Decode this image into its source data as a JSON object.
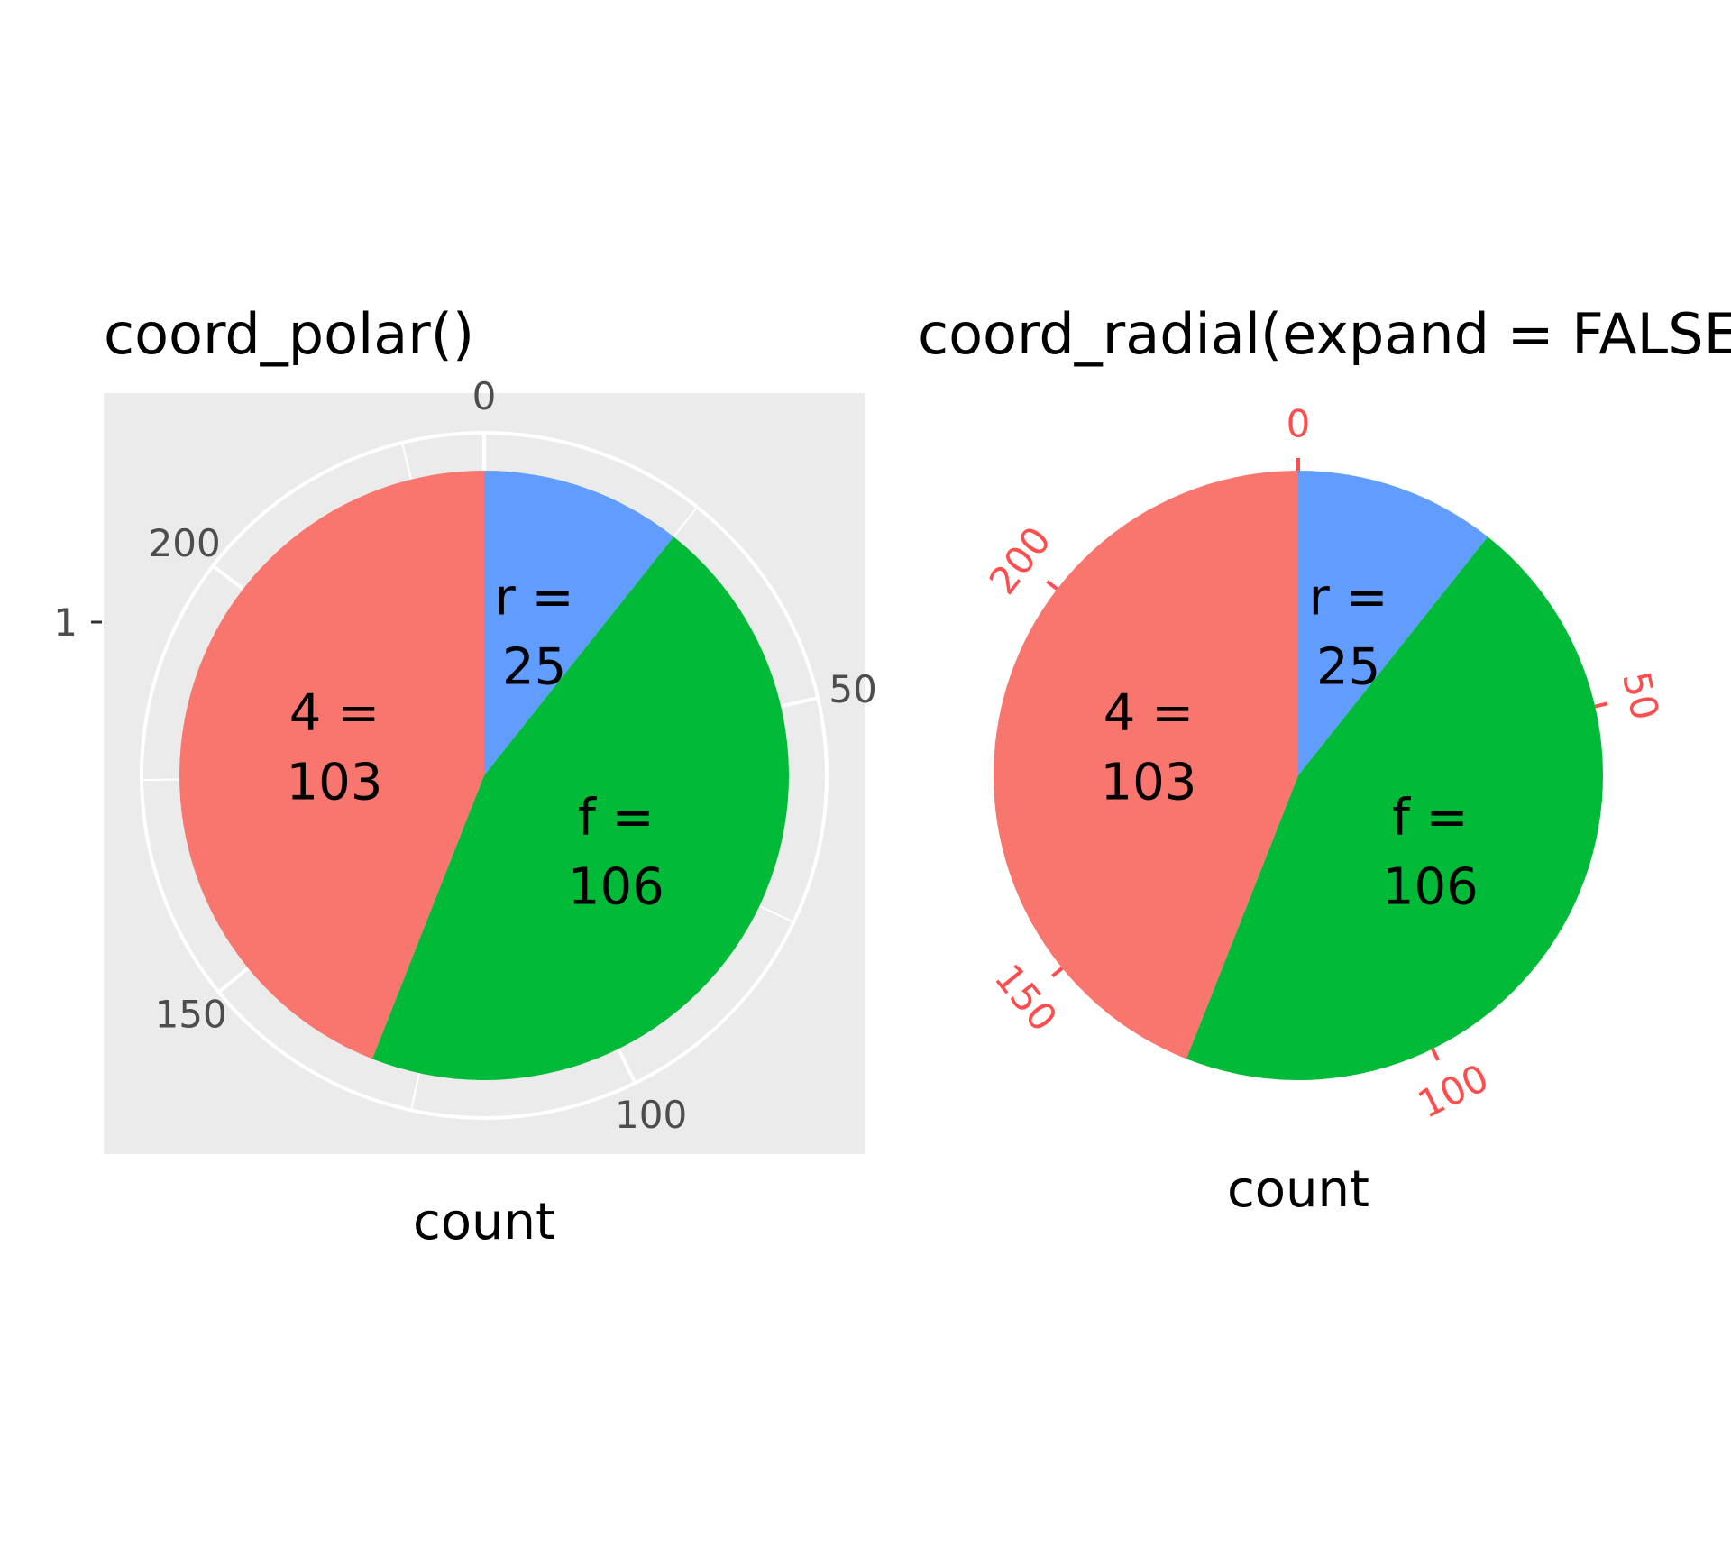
{
  "chart_data": [
    {
      "type": "pie",
      "title": "coord_polar()",
      "xlabel": "count",
      "ylabel": "",
      "coord": "polar",
      "panel_background": "#ebebeb",
      "grid": true,
      "r_ticks": [
        "1"
      ],
      "theta_ticks": [
        0,
        50,
        100,
        150,
        200
      ],
      "theta_max": 234,
      "slices": [
        {
          "category": "r",
          "value": 25,
          "label_top": "r =",
          "label_bottom": "25",
          "color": "#619cff"
        },
        {
          "category": "f",
          "value": 106,
          "label_top": "f =",
          "label_bottom": "106",
          "color": "#00ba38"
        },
        {
          "category": "4",
          "value": 103,
          "label_top": "4 =",
          "label_bottom": "103",
          "color": "#f8766d"
        }
      ]
    },
    {
      "type": "pie",
      "title": "coord_radial(expand = FALSE)",
      "xlabel": "count",
      "ylabel": "",
      "coord": "radial",
      "panel_background": "#ffffff",
      "grid": false,
      "tick_color": "#ff4d4d",
      "theta_ticks": [
        0,
        50,
        100,
        150,
        200
      ],
      "theta_max": 234,
      "slices": [
        {
          "category": "r",
          "value": 25,
          "label_top": "r =",
          "label_bottom": "25",
          "color": "#619cff"
        },
        {
          "category": "f",
          "value": 106,
          "label_top": "f =",
          "label_bottom": "106",
          "color": "#00ba38"
        },
        {
          "category": "4",
          "value": 103,
          "label_top": "4 =",
          "label_bottom": "103",
          "color": "#f8766d"
        }
      ]
    }
  ]
}
